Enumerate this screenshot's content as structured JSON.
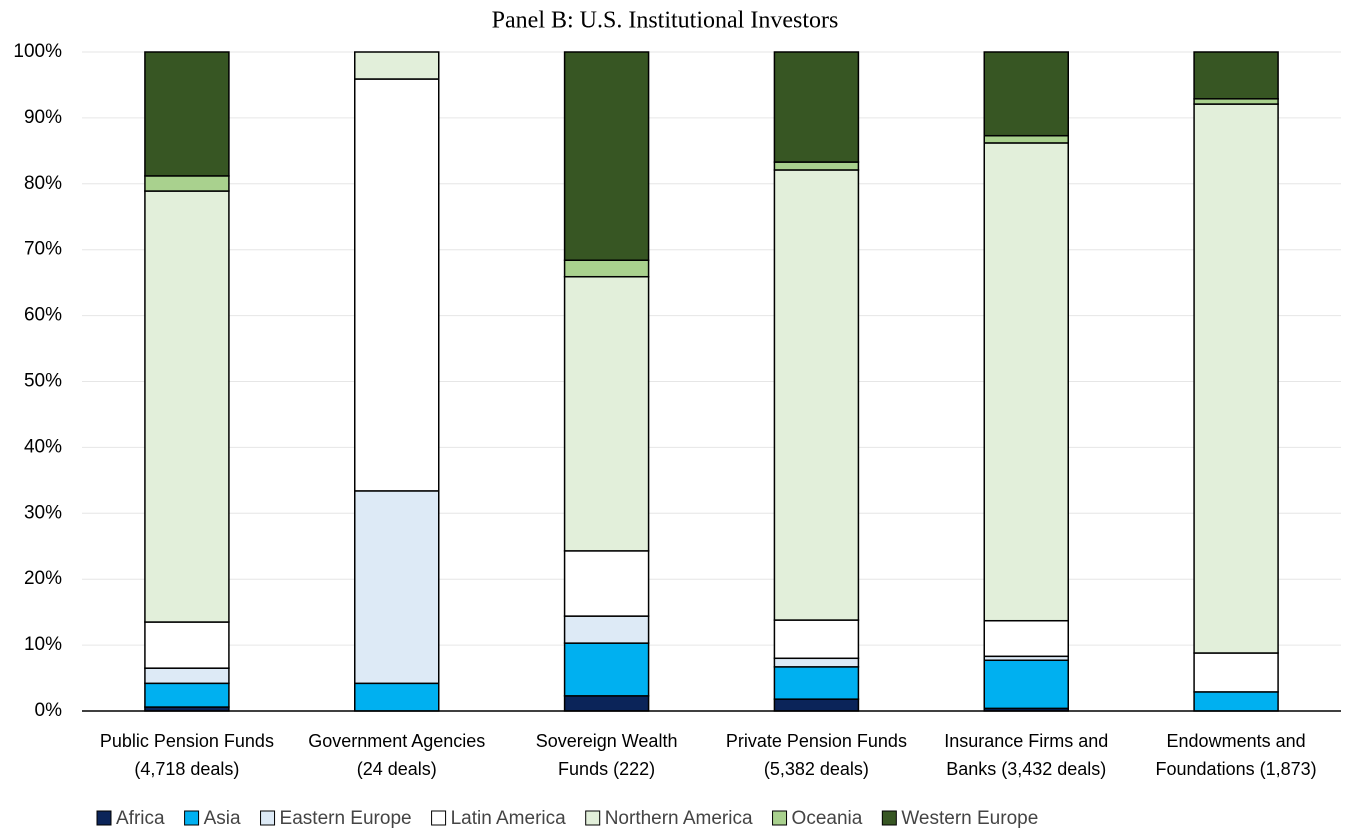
{
  "chart_data": {
    "type": "stacked-bar",
    "title": "Panel B: U.S. Institutional Investors",
    "categories": [
      "Public Pension Funds\n(4,718 deals)",
      "Government Agencies\n(24 deals)",
      "Sovereign Wealth\nFunds (222)",
      "Private Pension Funds\n(5,382 deals)",
      "Insurance Firms and\nBanks (3,432 deals)",
      "Endowments and\nFoundations (1,873)"
    ],
    "series": [
      {
        "name": "Africa",
        "color": "#0b2459",
        "values": [
          0.6,
          0,
          2.3,
          1.8,
          0.4,
          0
        ]
      },
      {
        "name": "Asia",
        "color": "#00b0f0",
        "values": [
          3.6,
          4.2,
          8.0,
          4.9,
          7.3,
          2.9
        ]
      },
      {
        "name": "Eastern Europe",
        "color": "#ddeaf6",
        "values": [
          2.3,
          29.2,
          4.1,
          1.3,
          0.6,
          0
        ]
      },
      {
        "name": "Latin America",
        "color": "#ffffff",
        "values": [
          7.0,
          62.5,
          9.9,
          5.8,
          5.4,
          5.9
        ]
      },
      {
        "name": "Northern America",
        "color": "#e2efda",
        "values": [
          65.4,
          4.1,
          41.6,
          68.3,
          72.5,
          83.3
        ]
      },
      {
        "name": "Oceania",
        "color": "#a9d18e",
        "values": [
          2.3,
          0,
          2.5,
          1.2,
          1.1,
          0.8
        ]
      },
      {
        "name": "Western Europe",
        "color": "#375623",
        "values": [
          18.8,
          0,
          31.6,
          16.7,
          12.7,
          7.1
        ]
      }
    ],
    "ylim": [
      0,
      100
    ],
    "yticks": [
      {
        "value": 0,
        "label": "0%"
      },
      {
        "value": 10,
        "label": "10%"
      },
      {
        "value": 20,
        "label": "20%"
      },
      {
        "value": 30,
        "label": "30%"
      },
      {
        "value": 40,
        "label": "40%"
      },
      {
        "value": 50,
        "label": "50%"
      },
      {
        "value": 60,
        "label": "60%"
      },
      {
        "value": 70,
        "label": "70%"
      },
      {
        "value": 80,
        "label": "80%"
      },
      {
        "value": 90,
        "label": "90%"
      },
      {
        "value": 100,
        "label": "100%"
      }
    ],
    "grid": true,
    "legend": "bottom"
  }
}
